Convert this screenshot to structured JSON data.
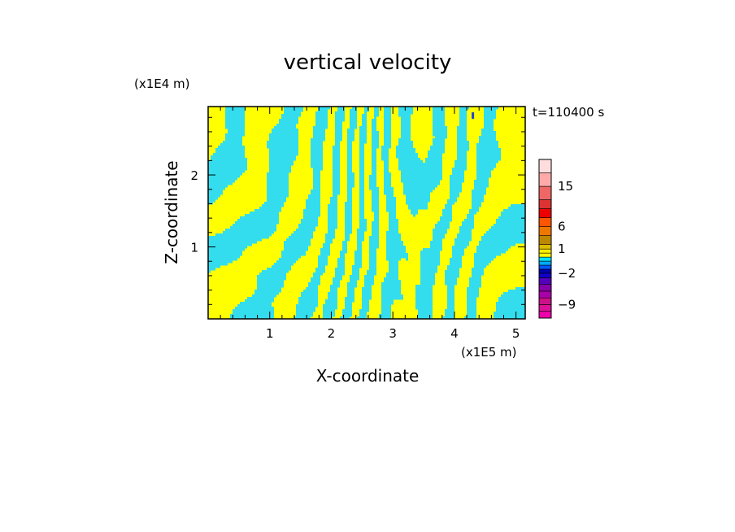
{
  "chart_data": {
    "type": "heatmap",
    "title": "vertical velocity",
    "xlabel": "X-coordinate",
    "ylabel": "Z-coordinate",
    "x_unit": "(x1E5 m)",
    "y_unit": "(x1E4 m)",
    "time_label": "t=110400 s",
    "xlim": [
      0,
      5.15
    ],
    "ylim": [
      0,
      2.95
    ],
    "x_ticks": [
      "1",
      "2",
      "3",
      "4",
      "5"
    ],
    "x_tick_values": [
      1,
      2,
      3,
      4,
      5
    ],
    "y_ticks": [
      "1",
      "2"
    ],
    "y_tick_values": [
      1,
      2
    ],
    "colorbar": {
      "levels_low_to_high": [
        -12,
        -10.5,
        -9,
        -7.5,
        -6,
        -4.5,
        -3,
        -2,
        -1.5,
        -1,
        -0.5,
        0,
        0.5,
        1,
        2,
        4,
        6,
        8,
        10,
        12,
        15,
        18,
        21
      ],
      "colors_low_to_high": [
        "#ee00aa",
        "#dd1199",
        "#cc1188",
        "#aa00aa",
        "#8800aa",
        "#5500bb",
        "#1100cc",
        "#0000aa",
        "#0055ff",
        "#00aaff",
        "#00e5ff",
        "#ffff00",
        "#ffee00",
        "#ddbb00",
        "#bb8800",
        "#ee7700",
        "#ff5500",
        "#ee0000",
        "#dd3333",
        "#ee6666",
        "#ffaaaa",
        "#ffdddd"
      ],
      "tick_labels": [
        "15",
        "6",
        "1",
        "−2",
        "−9"
      ],
      "tick_values": [
        15,
        6,
        1,
        -2,
        -9
      ]
    },
    "field_colors": {
      "positive": "#ffff00",
      "negative": "#33ddee",
      "strong_negative": "#2244cc"
    }
  }
}
